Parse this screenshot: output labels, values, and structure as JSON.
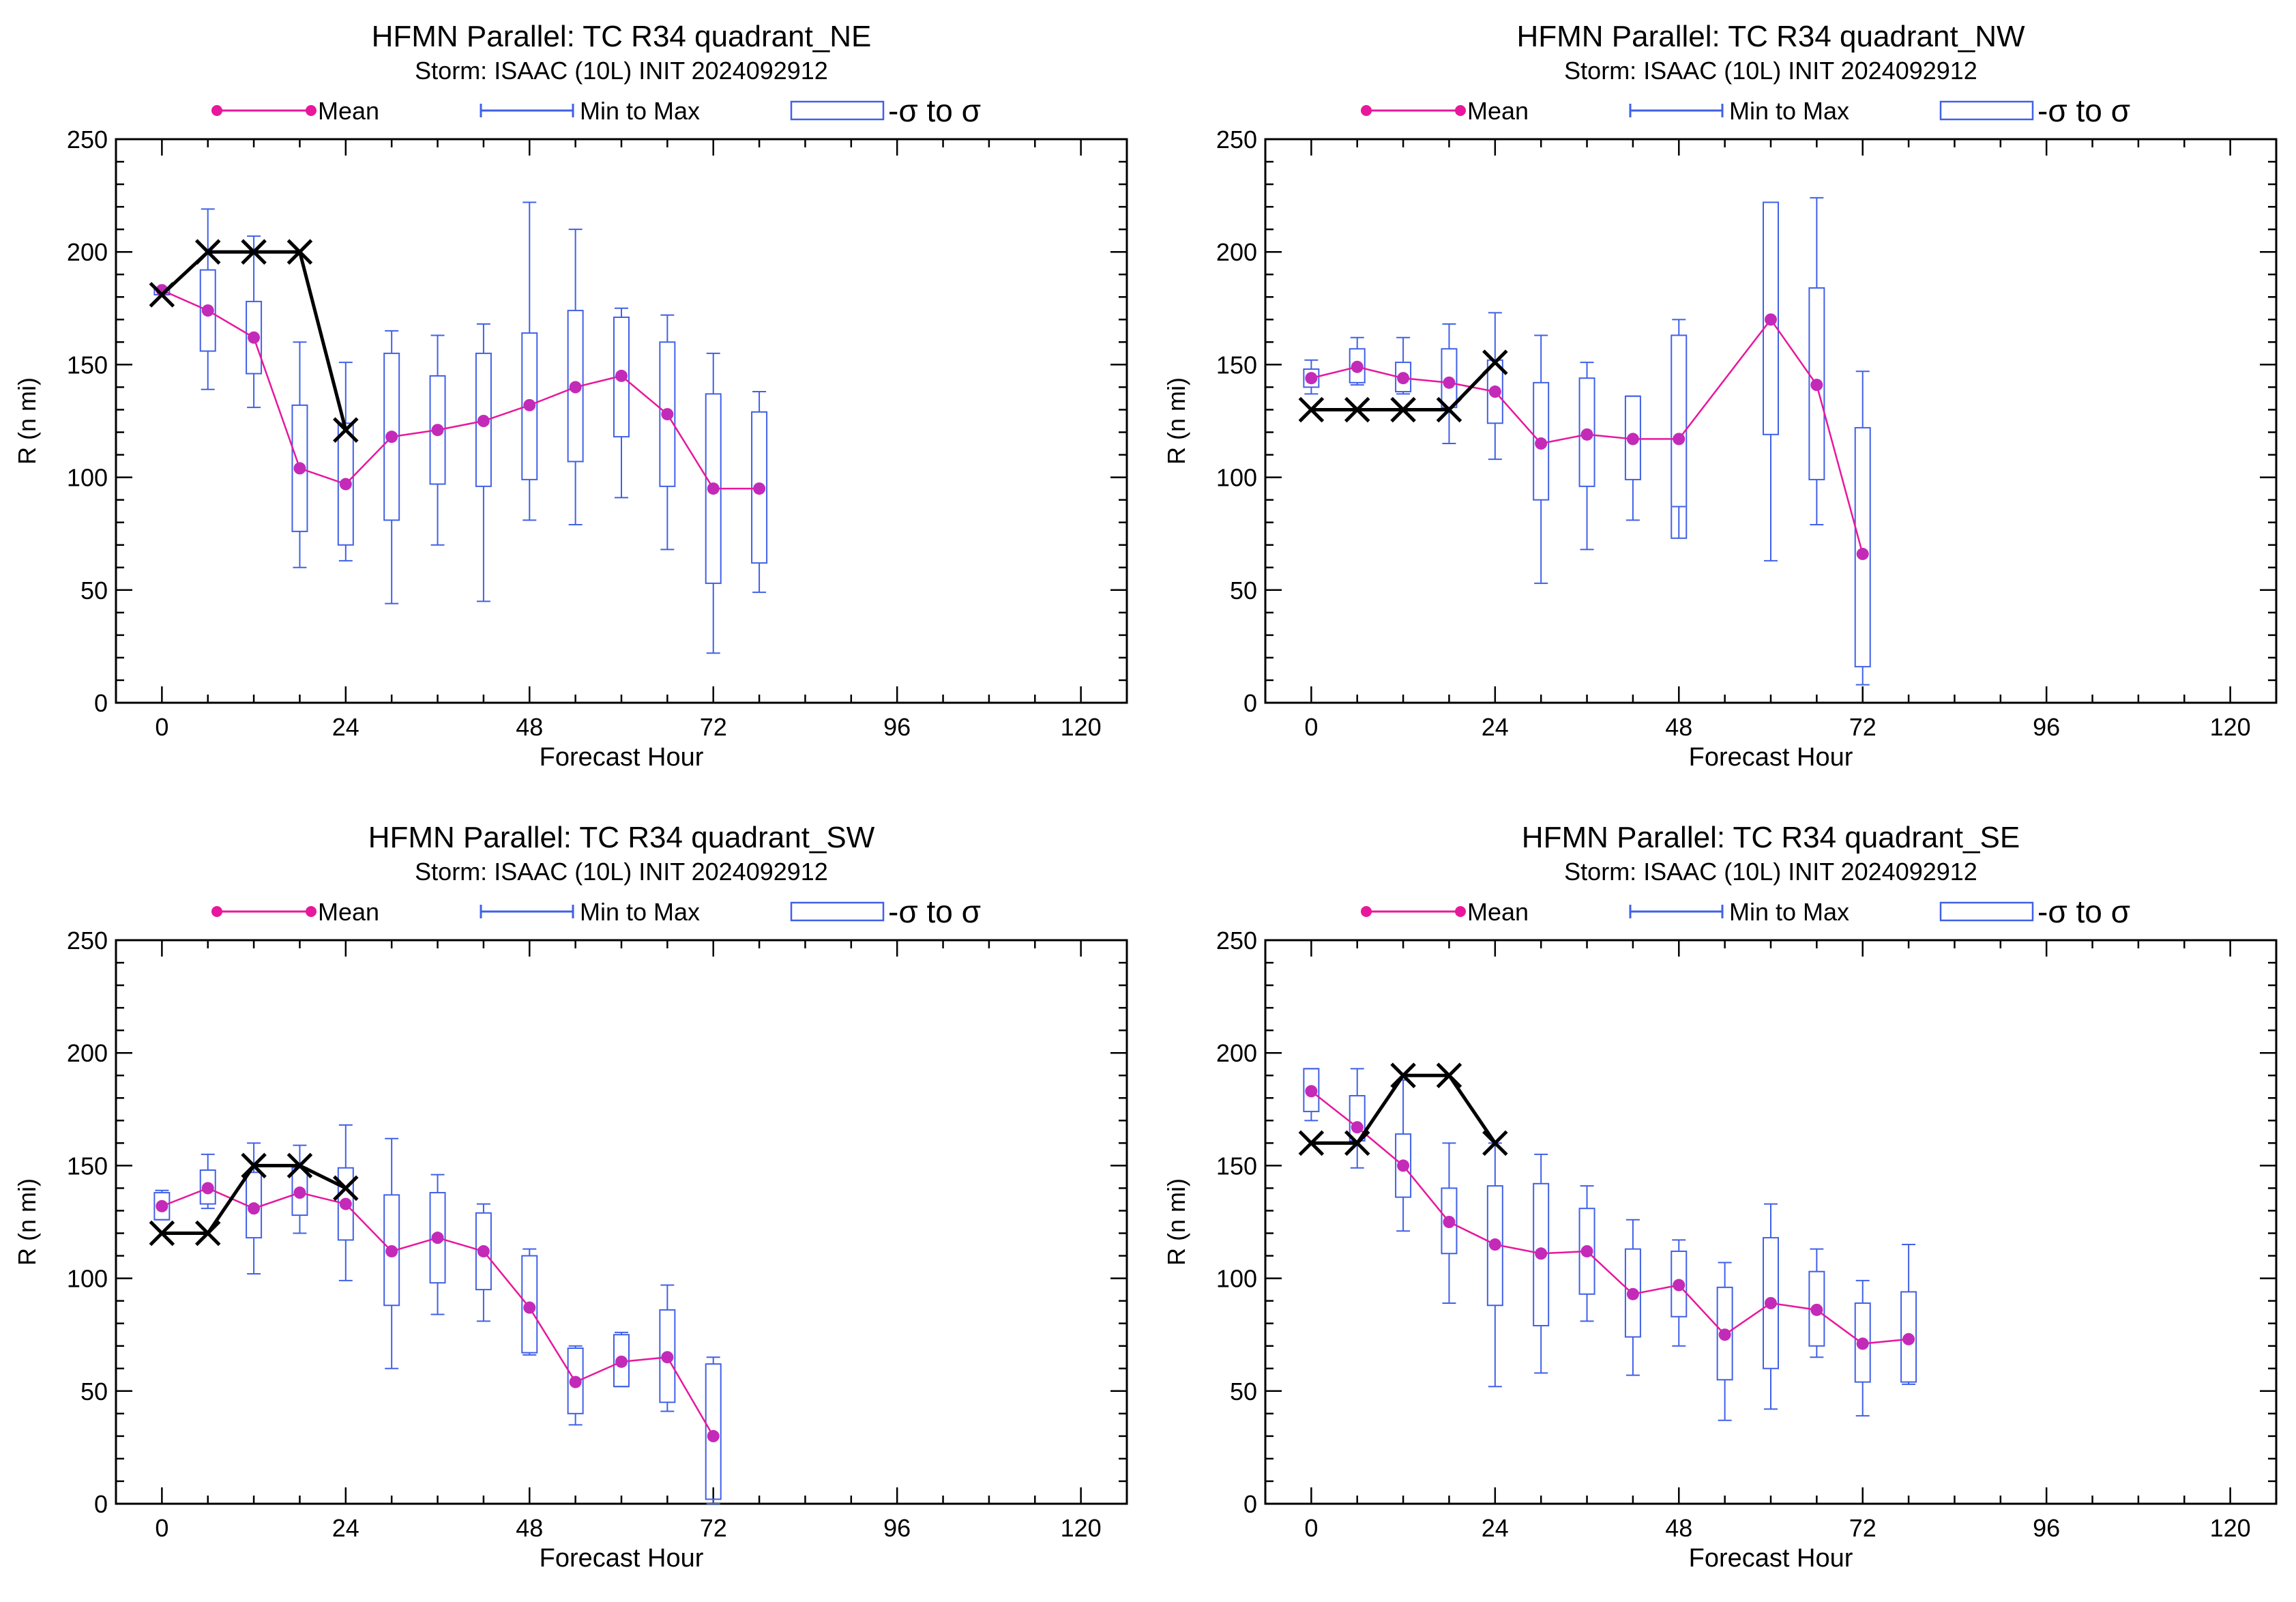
{
  "legend": {
    "mean": "Mean",
    "minmax": "Min to Max",
    "sigma": "-σ to σ"
  },
  "colors": {
    "mean": "#e8179c",
    "mean_dot": "#c42ab8",
    "box": "#4060e8",
    "best_track": "#000000"
  },
  "chart_data": [
    {
      "type": "box",
      "title": "HFMN Parallel: TC  R34 quadrant_NE",
      "subtitle": "Storm: ISAAC (10L) INIT 2024092912",
      "xlabel": "Forecast Hour",
      "ylabel": "R (n mi)",
      "xlim": [
        -6,
        126
      ],
      "ylim": [
        0,
        250
      ],
      "xticks": [
        0,
        24,
        48,
        72,
        96,
        120
      ],
      "yticks": [
        0,
        50,
        100,
        150,
        200,
        250
      ],
      "hours": [
        0,
        6,
        12,
        18,
        24,
        30,
        36,
        42,
        48,
        54,
        60,
        66,
        72,
        78
      ],
      "mean": [
        183,
        174,
        162,
        104,
        97,
        118,
        121,
        125,
        132,
        140,
        145,
        128,
        95,
        95
      ],
      "min": [
        181,
        139,
        131,
        60,
        63,
        44,
        70,
        45,
        81,
        79,
        91,
        68,
        22,
        49
      ],
      "max": [
        184,
        219,
        207,
        160,
        151,
        165,
        163,
        168,
        222,
        210,
        175,
        172,
        155,
        138
      ],
      "sigma_low": [
        181,
        156,
        146,
        76,
        70,
        81,
        97,
        96,
        99,
        107,
        118,
        96,
        53,
        62
      ],
      "sigma_high": [
        184,
        192,
        178,
        132,
        124,
        155,
        145,
        155,
        164,
        174,
        171,
        160,
        137,
        129
      ],
      "best_track": {
        "hours": [
          0,
          6,
          12,
          18,
          24
        ],
        "values": [
          181,
          200,
          200,
          200,
          121
        ]
      }
    },
    {
      "type": "box",
      "title": "HFMN Parallel: TC  R34 quadrant_NW",
      "subtitle": "Storm: ISAAC (10L) INIT 2024092912",
      "xlabel": "Forecast Hour",
      "ylabel": "R (n mi)",
      "xlim": [
        -6,
        126
      ],
      "ylim": [
        0,
        250
      ],
      "xticks": [
        0,
        24,
        48,
        72,
        96,
        120
      ],
      "yticks": [
        0,
        50,
        100,
        150,
        200,
        250
      ],
      "hours": [
        0,
        6,
        12,
        18,
        24,
        30,
        36,
        42,
        48,
        60,
        66,
        72
      ],
      "mean": [
        144,
        149,
        144,
        142,
        138,
        115,
        119,
        117,
        117,
        170,
        141,
        66
      ],
      "min": [
        137,
        141,
        137,
        115,
        108,
        53,
        68,
        81,
        87,
        63,
        79,
        8
      ],
      "max": [
        152,
        162,
        162,
        168,
        173,
        163,
        151,
        136,
        170,
        222,
        224,
        147
      ],
      "sigma_low": [
        140,
        142,
        138,
        131,
        124,
        90,
        96,
        99,
        73,
        119,
        99,
        16
      ],
      "sigma_high": [
        148,
        157,
        151,
        157,
        152,
        142,
        144,
        136,
        163,
        222,
        184,
        122
      ],
      "best_track": {
        "hours": [
          0,
          6,
          12,
          18,
          24
        ],
        "values": [
          130,
          130,
          130,
          130,
          151
        ]
      }
    },
    {
      "type": "box",
      "title": "HFMN Parallel: TC  R34 quadrant_SW",
      "subtitle": "Storm: ISAAC (10L) INIT 2024092912",
      "xlabel": "Forecast Hour",
      "ylabel": "R (n mi)",
      "xlim": [
        -6,
        126
      ],
      "ylim": [
        0,
        250
      ],
      "xticks": [
        0,
        24,
        48,
        72,
        96,
        120
      ],
      "yticks": [
        0,
        50,
        100,
        150,
        200,
        250
      ],
      "hours": [
        0,
        6,
        12,
        18,
        24,
        30,
        36,
        42,
        48,
        54,
        60,
        66,
        72
      ],
      "mean": [
        132,
        140,
        131,
        138,
        133,
        112,
        118,
        112,
        87,
        54,
        63,
        65,
        30
      ],
      "min": [
        126,
        131,
        102,
        120,
        99,
        60,
        84,
        81,
        66,
        35,
        52,
        41,
        0
      ],
      "max": [
        139,
        155,
        160,
        159,
        168,
        162,
        146,
        133,
        113,
        70,
        76,
        97,
        65
      ],
      "sigma_low": [
        126,
        133,
        118,
        128,
        117,
        88,
        98,
        95,
        67,
        40,
        52,
        45,
        2
      ],
      "sigma_high": [
        138,
        148,
        147,
        149,
        149,
        137,
        138,
        129,
        110,
        69,
        75,
        86,
        62
      ],
      "best_track": {
        "hours": [
          0,
          6,
          12,
          18,
          24
        ],
        "values": [
          120,
          120,
          150,
          150,
          140
        ]
      }
    },
    {
      "type": "box",
      "title": "HFMN Parallel: TC  R34 quadrant_SE",
      "subtitle": "Storm: ISAAC (10L) INIT 2024092912",
      "xlabel": "Forecast Hour",
      "ylabel": "R (n mi)",
      "xlim": [
        -6,
        126
      ],
      "ylim": [
        0,
        250
      ],
      "xticks": [
        0,
        24,
        48,
        72,
        96,
        120
      ],
      "yticks": [
        0,
        50,
        100,
        150,
        200,
        250
      ],
      "hours": [
        0,
        6,
        12,
        18,
        24,
        30,
        36,
        42,
        48,
        54,
        60,
        66,
        72,
        78
      ],
      "mean": [
        183,
        167,
        150,
        125,
        115,
        111,
        112,
        93,
        97,
        75,
        89,
        86,
        71,
        73
      ],
      "min": [
        170,
        149,
        121,
        89,
        52,
        58,
        81,
        57,
        70,
        37,
        42,
        65,
        39,
        53
      ],
      "max": [
        193,
        193,
        188,
        160,
        160,
        155,
        141,
        126,
        117,
        107,
        133,
        113,
        99,
        115
      ],
      "sigma_low": [
        174,
        161,
        136,
        111,
        88,
        79,
        93,
        74,
        83,
        55,
        60,
        70,
        54,
        54
      ],
      "sigma_high": [
        193,
        181,
        164,
        140,
        141,
        142,
        131,
        113,
        112,
        96,
        118,
        103,
        89,
        94
      ],
      "best_track": {
        "hours": [
          0,
          6,
          12,
          18,
          24
        ],
        "values": [
          160,
          160,
          190,
          190,
          160
        ]
      }
    }
  ]
}
